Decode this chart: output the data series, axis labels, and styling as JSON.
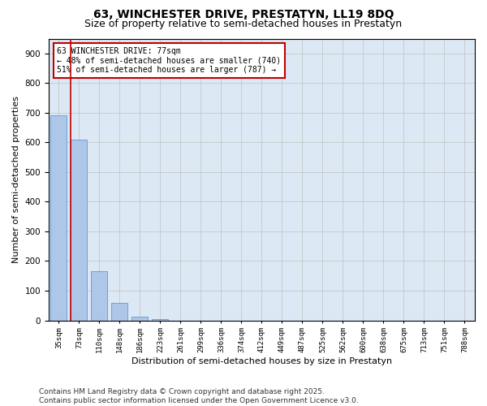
{
  "title": "63, WINCHESTER DRIVE, PRESTATYN, LL19 8DQ",
  "subtitle": "Size of property relative to semi-detached houses in Prestatyn",
  "xlabel": "Distribution of semi-detached houses by size in Prestatyn",
  "ylabel": "Number of semi-detached properties",
  "categories": [
    "35sqm",
    "73sqm",
    "110sqm",
    "148sqm",
    "186sqm",
    "223sqm",
    "261sqm",
    "299sqm",
    "336sqm",
    "374sqm",
    "412sqm",
    "449sqm",
    "487sqm",
    "525sqm",
    "562sqm",
    "600sqm",
    "638sqm",
    "675sqm",
    "713sqm",
    "751sqm",
    "788sqm"
  ],
  "values": [
    690,
    610,
    165,
    60,
    13,
    5,
    0,
    0,
    0,
    0,
    0,
    0,
    0,
    0,
    0,
    0,
    0,
    0,
    0,
    0,
    0
  ],
  "bar_color": "#aec6e8",
  "bar_edge_color": "#5b9bd5",
  "highlight_bar_index": 1,
  "highlight_edge_color": "#c00000",
  "annotation_text": "63 WINCHESTER DRIVE: 77sqm\n← 48% of semi-detached houses are smaller (740)\n51% of semi-detached houses are larger (787) →",
  "annotation_box_edge_color": "#c00000",
  "ylim": [
    0,
    950
  ],
  "yticks": [
    0,
    100,
    200,
    300,
    400,
    500,
    600,
    700,
    800,
    900
  ],
  "background_color": "#ffffff",
  "plot_bg_color": "#dce9f5",
  "grid_color": "#c0c0c0",
  "footer": "Contains HM Land Registry data © Crown copyright and database right 2025.\nContains public sector information licensed under the Open Government Licence v3.0.",
  "title_fontsize": 10,
  "subtitle_fontsize": 9,
  "xlabel_fontsize": 8,
  "ylabel_fontsize": 8,
  "footer_fontsize": 6.5
}
